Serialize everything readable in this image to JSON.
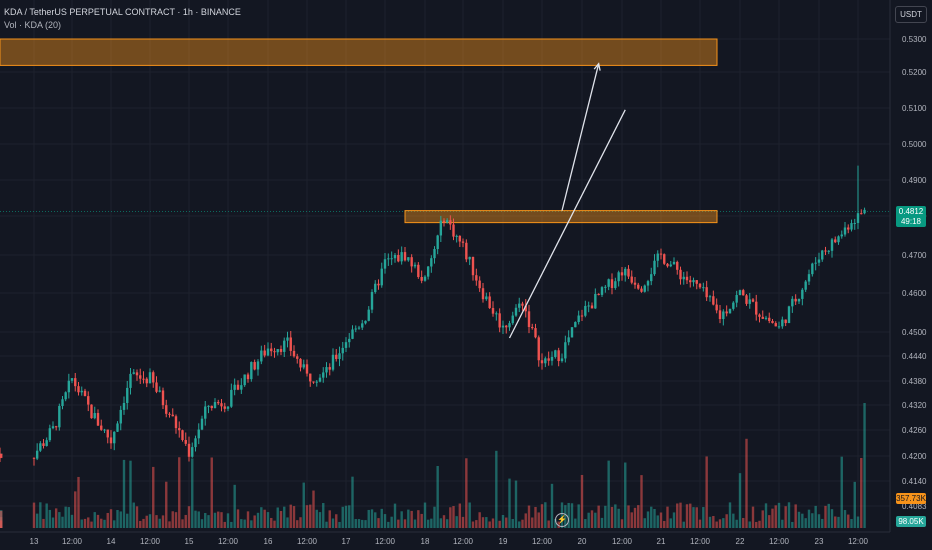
{
  "header": {
    "symbol_line": "KDA / TetherUS PERPETUAL CONTRACT · 1h · BINANCE",
    "volume_line": "Vol · KDA (20)"
  },
  "toolbar": {
    "currency_button": "USDT"
  },
  "price_tag": {
    "price": "0.4812",
    "countdown": "49:18"
  },
  "volume_tags": {
    "ma": "357.73K",
    "volume": "98.05K"
  },
  "icons": {
    "bolt": "⚡"
  },
  "colors": {
    "background": "#131722",
    "up": "#26a69a",
    "down": "#ef5350",
    "zone_border": "#f7931a",
    "zone_fill": "#f7931a",
    "ma_line": "#f7931a",
    "axis_text": "#b2b5be"
  },
  "chart_data": {
    "type": "candlestick",
    "title": "KDA / TetherUS PERPETUAL CONTRACT · 1h · BINANCE",
    "y_ticks": [
      "0.5300",
      "0.5200",
      "0.5100",
      "0.5000",
      "0.4900",
      "0.4800",
      "0.4700",
      "0.4600",
      "0.4500",
      "0.4440",
      "0.4380",
      "0.4320",
      "0.4260",
      "0.4200",
      "0.4140",
      "0.4083"
    ],
    "x_ticks": [
      "13",
      "12:00",
      "14",
      "12:00",
      "15",
      "12:00",
      "16",
      "12:00",
      "17",
      "12:00",
      "18",
      "12:00",
      "19",
      "12:00",
      "20",
      "12:00",
      "21",
      "12:00",
      "22",
      "12:00",
      "23",
      "12:00"
    ],
    "last_price": 0.4812,
    "zones": [
      {
        "from_x": "13",
        "to_x": "20 12:00",
        "y_low": 0.522,
        "y_high": 0.53
      },
      {
        "from_x": "18",
        "to_x": "20 12:00",
        "y_low": 0.4783,
        "y_high": 0.4815
      }
    ],
    "trendlines": [
      {
        "from": [
          "19 02:00",
          0.4485
        ],
        "to": [
          "20 13:00",
          0.5095
        ],
        "arrow": false
      },
      {
        "from": [
          "19 18:00",
          0.4815
        ],
        "to": [
          "20 05:00",
          0.5225
        ],
        "arrow": true
      }
    ],
    "volume_ma_label": "357.73K",
    "volume_last_label": "98.05K"
  }
}
